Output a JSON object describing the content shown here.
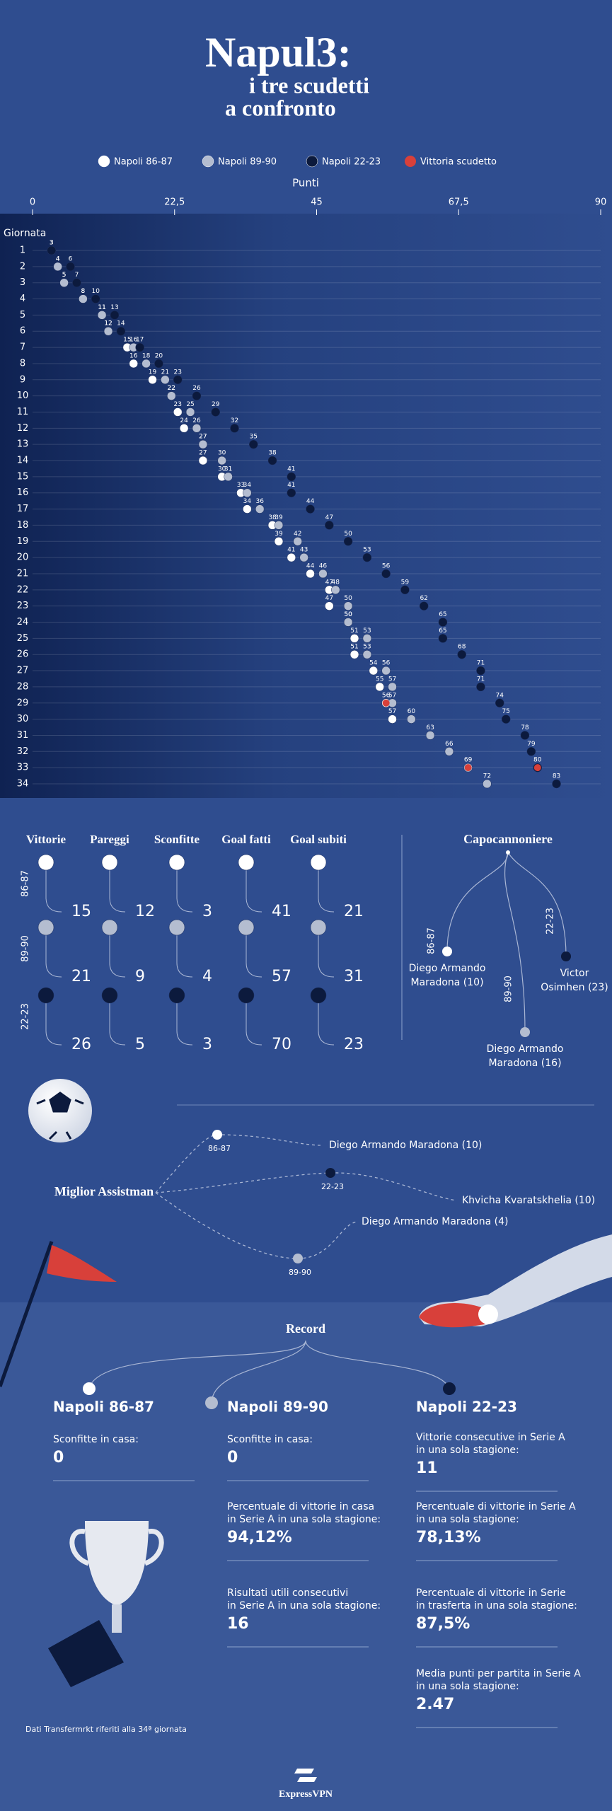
{
  "chart_data": {
    "type": "dot",
    "title": "Napul3:",
    "subtitle": [
      "i tre scudetti",
      "a confronto"
    ],
    "x_label": "Punti",
    "y_label": "Giornata",
    "categories": [
      "1",
      "2",
      "3",
      "4",
      "5",
      "6",
      "7",
      "8",
      "9",
      "10",
      "11",
      "12",
      "13",
      "14",
      "15",
      "16",
      "17",
      "18",
      "19",
      "20",
      "21",
      "22",
      "23",
      "24",
      "25",
      "26",
      "27",
      "28",
      "29",
      "30",
      "31",
      "32",
      "33",
      "34"
    ],
    "xlim": [
      0,
      90
    ],
    "xticks": [
      0,
      {
        "value": 22.5,
        "label": "22,5"
      },
      45,
      {
        "value": 67.5,
        "label": "67,5"
      },
      90
    ],
    "series": [
      {
        "name": "Napoli 86-87",
        "color": "#ffffff",
        "values": [
          3,
          4,
          5,
          8,
          11,
          12,
          15,
          16,
          19,
          22,
          23,
          24,
          27,
          27,
          30,
          33,
          34,
          38,
          39,
          41,
          44,
          47,
          47,
          50,
          51,
          51,
          54,
          55,
          56,
          57,
          null,
          null,
          null,
          null
        ]
      },
      {
        "name": "Napoli 89-90",
        "color": "#b4bdd0",
        "values": [
          3,
          4,
          5,
          8,
          11,
          12,
          16,
          18,
          21,
          22,
          25,
          26,
          27,
          30,
          31,
          34,
          36,
          39,
          42,
          43,
          46,
          48,
          50,
          50,
          53,
          53,
          56,
          57,
          57,
          60,
          63,
          66,
          69,
          72
        ]
      },
      {
        "name": "Napoli 22-23",
        "color": "#0c1a3d",
        "values": [
          3,
          6,
          7,
          10,
          13,
          14,
          17,
          20,
          23,
          26,
          29,
          32,
          35,
          38,
          41,
          41,
          44,
          47,
          50,
          53,
          56,
          59,
          62,
          65,
          65,
          68,
          71,
          71,
          74,
          75,
          78,
          79,
          80,
          83
        ]
      }
    ],
    "highlight": {
      "name": "Vittoria scudetto",
      "color": "#d8403a",
      "points": [
        {
          "giornata": 29,
          "value": 56
        },
        {
          "giornata": 33,
          "value": 69
        },
        {
          "giornata": 33,
          "value": 80
        }
      ]
    }
  },
  "seasons": [
    "86-87",
    "89-90",
    "22-23"
  ],
  "stats": {
    "columns": [
      "Vittorie",
      "Pareggi",
      "Sconfitte",
      "Goal fatti",
      "Goal subiti"
    ],
    "rows": [
      [
        "15",
        "12",
        "3",
        "41",
        "21"
      ],
      [
        "21",
        "9",
        "4",
        "57",
        "31"
      ],
      [
        "26",
        "5",
        "3",
        "70",
        "23"
      ]
    ]
  },
  "capocannoniere": {
    "title": "Capocannoniere",
    "players": [
      [
        "Diego Armando",
        "Maradona (10)"
      ],
      [
        "Diego Armando",
        "Maradona (16)"
      ],
      [
        "Victor",
        "Osimhen (23)"
      ]
    ]
  },
  "assistman": {
    "title": "Miglior Assistman",
    "players": [
      "Diego Armando Maradona (10)",
      "Diego Armando Maradona (4)",
      "Khvicha Kvaratskhelia (10)"
    ]
  },
  "record": {
    "title": "Record",
    "columns": [
      [
        {
          "label": [
            "Sconfitte in casa:"
          ],
          "value": "0"
        }
      ],
      [
        {
          "label": [
            "Sconfitte in casa:"
          ],
          "value": "0"
        },
        {
          "label": [
            "Percentuale di vittorie in casa",
            "in Serie A in una sola stagione:"
          ],
          "value": "94,12%"
        },
        {
          "label": [
            "Risultati utili consecutivi",
            "in Serie A in una sola stagione:"
          ],
          "value": "16"
        }
      ],
      [
        {
          "label": [
            "Vittorie consecutive in Serie A",
            "in una sola stagione:"
          ],
          "value": "11"
        },
        {
          "label": [
            "Percentuale di vittorie in Serie A",
            "in una sola stagione:"
          ],
          "value": "78,13%"
        },
        {
          "label": [
            "Percentuale di vittorie in Serie",
            "in trasferta in una sola stagione:"
          ],
          "value": "87,5%"
        },
        {
          "label": [
            "Media punti per partita in Serie A",
            "in una sola stagione:"
          ],
          "value": "2.47"
        }
      ]
    ]
  },
  "footnote": "Dati Transfermrkt riferiti alla 34ª giornata",
  "logo": "ExpressVPN"
}
